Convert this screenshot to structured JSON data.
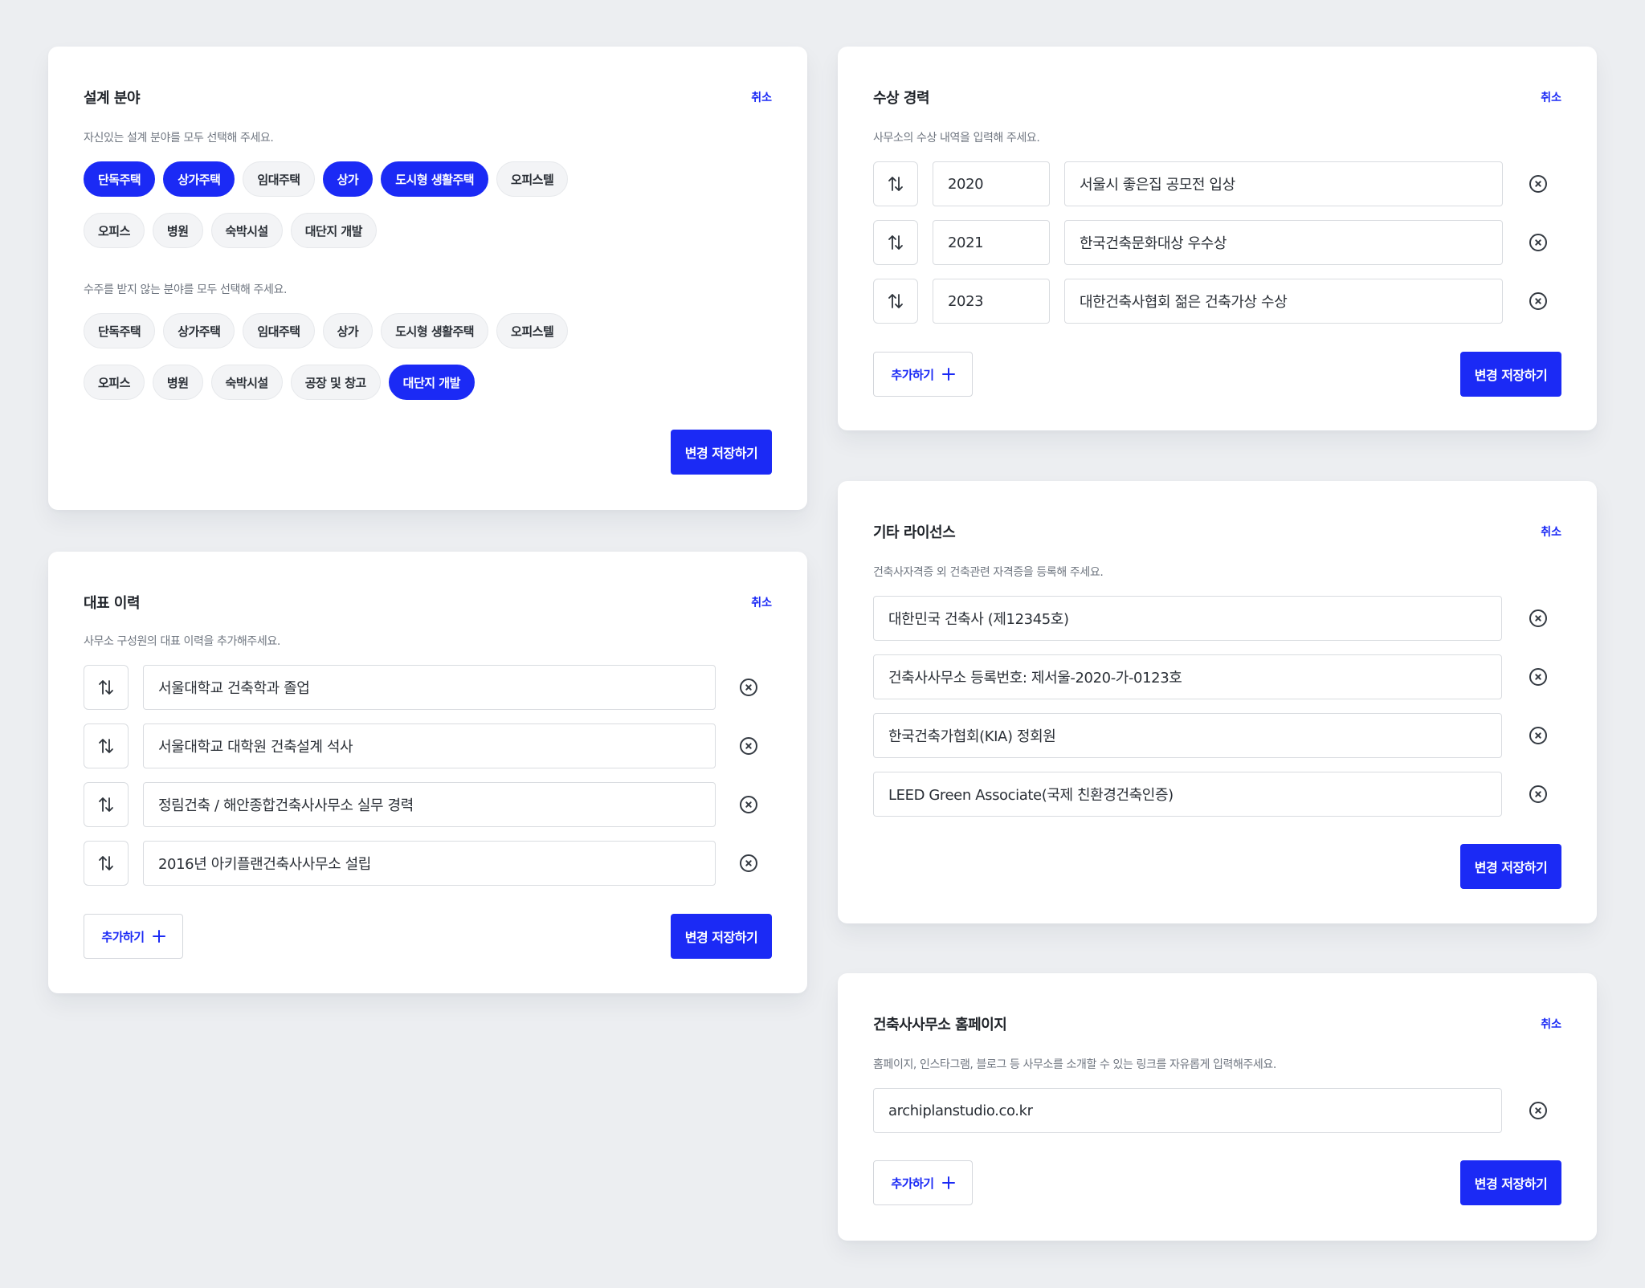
{
  "design_field": {
    "title": "설계 분야",
    "cancel": "취소",
    "desc_confident": "자신있는 설계 분야를 모두 선택해 주세요.",
    "confident_chips": [
      {
        "label": "단독주택",
        "selected": true
      },
      {
        "label": "상가주택",
        "selected": true
      },
      {
        "label": "임대주택",
        "selected": false
      },
      {
        "label": "상가",
        "selected": true
      },
      {
        "label": "도시형 생활주택",
        "selected": true
      },
      {
        "label": "오피스텔",
        "selected": false
      },
      {
        "label": "오피스",
        "selected": false
      },
      {
        "label": "병원",
        "selected": false
      },
      {
        "label": "숙박시설",
        "selected": false
      },
      {
        "label": "대단지 개발",
        "selected": false
      }
    ],
    "desc_rejected": "수주를 받지 않는 분야를 모두 선택해 주세요.",
    "rejected_chips": [
      {
        "label": "단독주택",
        "selected": false
      },
      {
        "label": "상가주택",
        "selected": false
      },
      {
        "label": "임대주택",
        "selected": false
      },
      {
        "label": "상가",
        "selected": false
      },
      {
        "label": "도시형 생활주택",
        "selected": false
      },
      {
        "label": "오피스텔",
        "selected": false
      },
      {
        "label": "오피스",
        "selected": false
      },
      {
        "label": "병원",
        "selected": false
      },
      {
        "label": "숙박시설",
        "selected": false
      },
      {
        "label": "공장 및 창고",
        "selected": false
      },
      {
        "label": "대단지 개발",
        "selected": true
      }
    ],
    "save": "변경 저장하기"
  },
  "history": {
    "title": "대표 이력",
    "cancel": "취소",
    "desc": "사무소 구성원의 대표 이력을 추가해주세요.",
    "items": [
      "서울대학교 건축학과 졸업",
      "서울대학교 대학원 건축설계 석사",
      "정림건축 / 해안종합건축사사무소 실무 경력",
      "2016년 아키플랜건축사사무소 설립"
    ],
    "add": "추가하기",
    "save": "변경 저장하기"
  },
  "awards": {
    "title": "수상 경력",
    "cancel": "취소",
    "desc": "사무소의 수상 내역을 입력해 주세요.",
    "items": [
      {
        "year": "2020",
        "name": "서울시 좋은집 공모전 입상"
      },
      {
        "year": "2021",
        "name": "한국건축문화대상 우수상"
      },
      {
        "year": "2023",
        "name": "대한건축사협회 젊은 건축가상 수상"
      }
    ],
    "add": "추가하기",
    "save": "변경 저장하기"
  },
  "licenses": {
    "title": "기타 라이선스",
    "cancel": "취소",
    "desc": "건축사자격증 외 건축관련 자격증을 등록해 주세요.",
    "items": [
      "대한민국 건축사 (제12345호)",
      "건축사사무소 등록번호: 제서울-2020-가-0123호",
      "한국건축가협회(KIA) 정회원",
      "LEED Green Associate(국제 친환경건축인증)"
    ],
    "save": "변경 저장하기"
  },
  "homepage": {
    "title": "건축사사무소 홈페이지",
    "cancel": "취소",
    "desc": "홈페이지, 인스타그램, 블로그 등 사무소를 소개할 수 있는 링크를 자유롭게 입력해주세요.",
    "items": [
      "archiplanstudio.co.kr"
    ],
    "add": "추가하기",
    "save": "변경 저장하기"
  },
  "colors": {
    "accent": "#1b2af5",
    "background": "#eceef1",
    "card": "#ffffff",
    "chip_idle": "#f3f4f6"
  },
  "icons": {
    "reorder": "reorder-arrows-icon",
    "remove": "remove-circle-x-icon",
    "add": "plus-icon"
  }
}
